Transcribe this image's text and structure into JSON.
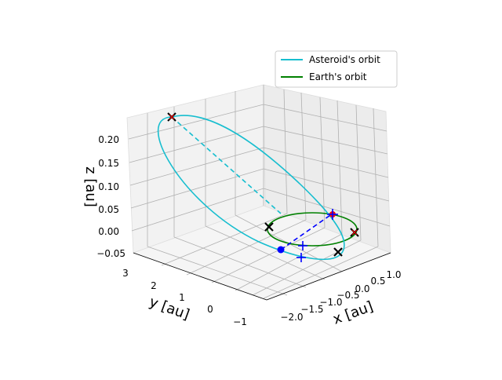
{
  "chart_data": {
    "type": "3d-line",
    "title": "",
    "xlabel": "x [au]",
    "ylabel": "y [au]",
    "zlabel": "z [au]",
    "xlim": [
      -2.3,
      1.2
    ],
    "ylim": [
      -1.2,
      3.2
    ],
    "zlim": [
      -0.05,
      0.25
    ],
    "xticks": [
      "−2.0",
      "−1.5",
      "−1.0",
      "−0.5",
      "0.0",
      "0.5",
      "1.0"
    ],
    "yticks": [
      "3",
      "2",
      "1",
      "0",
      "−1"
    ],
    "zticks": [
      "0.20",
      "0.15",
      "0.10",
      "0.05",
      "0.00",
      "−0.05"
    ],
    "grid": true,
    "legend": {
      "position": "top-right",
      "entries": [
        "Asteroid's orbit",
        "Earth's orbit"
      ]
    },
    "colors": {
      "asteroid": "#17becf",
      "earth": "#008000",
      "transfer": "#0000ff",
      "marker_x": "#000000",
      "marker_red": "#ff0000"
    },
    "series": [
      {
        "name": "Asteroid's orbit",
        "color": "#17becf",
        "style": "ellipse",
        "description_points": [
          {
            "x": -1.9,
            "y": 2.9,
            "z": 0.22
          },
          {
            "x": -1.2,
            "y": 1.2,
            "z": 0.12
          },
          {
            "x": -0.2,
            "y": -0.6,
            "z": -0.02
          },
          {
            "x": 0.3,
            "y": -0.2,
            "z": -0.04
          }
        ]
      },
      {
        "name": "Earth's orbit",
        "color": "#008000",
        "style": "circle",
        "radius_au": 1.0,
        "z": 0.0
      }
    ],
    "markers": [
      {
        "kind": "x-red",
        "x": -1.9,
        "y": 2.9,
        "z": 0.22
      },
      {
        "kind": "x-black",
        "x": -1.0,
        "y": 1.0,
        "z": 0.0
      },
      {
        "kind": "x-black",
        "x": 0.4,
        "y": -0.6,
        "z": 0.0
      },
      {
        "kind": "x-red",
        "x": 0.9,
        "y": 0.3,
        "z": 0.0
      },
      {
        "kind": "dot-blue",
        "x": -0.9,
        "y": -0.2,
        "z": 0.0
      },
      {
        "kind": "plus-red",
        "x": 0.1,
        "y": 0.9,
        "z": 0.0
      },
      {
        "kind": "plus-blue",
        "x": -0.6,
        "y": 0.0,
        "z": 0.0
      },
      {
        "kind": "plus-blue",
        "x": -0.5,
        "y": -0.2,
        "z": -0.01
      }
    ]
  }
}
